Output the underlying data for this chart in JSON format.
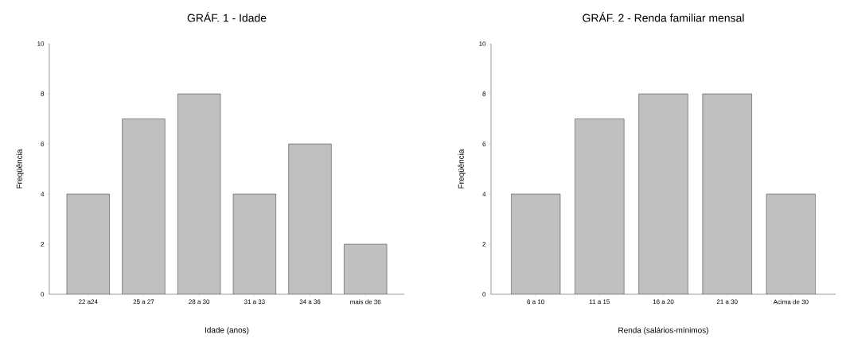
{
  "chart_data": [
    {
      "type": "bar",
      "title": "GRÁF. 1 - Idade",
      "xlabel": "Idade (anos)",
      "ylabel": "Freqüência",
      "categories": [
        "22 a24",
        "25 a 27",
        "28 a 30",
        "31 a 33",
        "34 a 36",
        "mais de 36"
      ],
      "values": [
        4,
        7,
        8,
        4,
        6,
        2
      ],
      "color": "#c0c0c0",
      "ylim": [
        0,
        10
      ],
      "yticks": [
        0,
        2,
        4,
        6,
        8,
        10
      ]
    },
    {
      "type": "bar",
      "title": "GRÁF. 2 - Renda familiar mensal",
      "xlabel": "Renda (salários-mínimos)",
      "ylabel": "Freqüência",
      "categories": [
        "6 a 10",
        "11 a 15",
        "16 a 20",
        "21 a 30",
        "Acima de 30"
      ],
      "values": [
        4,
        7,
        8,
        8,
        4
      ],
      "color": "#c0c0c0",
      "ylim": [
        0,
        10
      ],
      "yticks": [
        0,
        2,
        4,
        6,
        8,
        10
      ]
    }
  ]
}
